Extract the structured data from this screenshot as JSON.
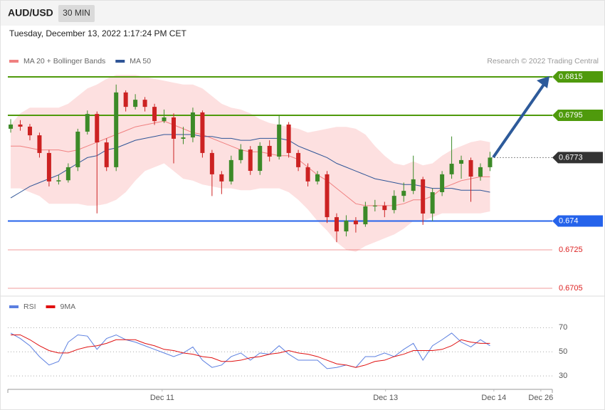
{
  "header": {
    "symbol": "AUD/USD",
    "timeframe": "30 MIN",
    "timestamp": "Tuesday, December 13, 2022 1:17:24 PM CET"
  },
  "chart_data": [
    {
      "type": "candlestick",
      "source": "Research © 2022 Trading Central",
      "xlim": [
        -0.3,
        56.5
      ],
      "ylim": [
        0.6701,
        0.682
      ],
      "up_color": "#3c8a28",
      "down_color": "#cc2222",
      "open": [
        0.6788,
        0.67902,
        0.67891,
        0.67846,
        0.67754,
        0.67606,
        0.67612,
        0.6768,
        0.67865,
        0.67957,
        0.67809,
        0.6768,
        0.68069,
        0.67994,
        0.68031,
        0.67994,
        0.6792,
        0.67939,
        0.67828,
        0.67835,
        0.67965,
        0.67754,
        0.67643,
        0.67606,
        0.67717,
        0.67772,
        0.67661,
        0.67791,
        0.67735,
        0.67902,
        0.67754,
        0.6768,
        0.67606,
        0.67643,
        0.6742,
        0.67346,
        0.67402,
        0.67383,
        0.67476,
        0.6748,
        0.67457,
        0.67531,
        0.67557,
        0.67617,
        0.67439,
        0.6755,
        0.67643,
        0.67698,
        0.67717,
        0.67631,
        0.6768
      ],
      "high": [
        0.6793,
        0.67925,
        0.67905,
        0.6786,
        0.6777,
        0.6764,
        0.677,
        0.6788,
        0.67975,
        0.6797,
        0.6783,
        0.6811,
        0.6808,
        0.6806,
        0.68045,
        0.6801,
        0.6798,
        0.6796,
        0.6789,
        0.6799,
        0.67975,
        0.6777,
        0.6766,
        0.6774,
        0.678,
        0.6779,
        0.6781,
        0.6782,
        0.6795,
        0.67915,
        0.6777,
        0.677,
        0.6766,
        0.6766,
        0.6744,
        0.6743,
        0.6742,
        0.675,
        0.6751,
        0.675,
        0.6756,
        0.676,
        0.6774,
        0.6763,
        0.6757,
        0.6766,
        0.6784,
        0.6774,
        0.6773,
        0.677,
        0.6776
      ],
      "low": [
        0.6786,
        0.6787,
        0.6782,
        0.6773,
        0.6758,
        0.6759,
        0.676,
        0.6766,
        0.6785,
        0.6744,
        0.6766,
        0.6766,
        0.6797,
        0.6798,
        0.6797,
        0.679,
        0.6791,
        0.677,
        0.678,
        0.6781,
        0.6773,
        0.6753,
        0.6754,
        0.6759,
        0.677,
        0.6764,
        0.6764,
        0.6771,
        0.6772,
        0.6773,
        0.6766,
        0.6758,
        0.6759,
        0.6739,
        0.6729,
        0.6732,
        0.6734,
        0.6737,
        0.6745,
        0.6742,
        0.6744,
        0.675,
        0.6754,
        0.6738,
        0.674,
        0.6753,
        0.6762,
        0.6762,
        0.675,
        0.6761,
        0.6766
      ],
      "close": [
        0.67902,
        0.67891,
        0.67846,
        0.67754,
        0.67606,
        0.67612,
        0.6768,
        0.67865,
        0.67957,
        0.67809,
        0.6768,
        0.68069,
        0.67994,
        0.68031,
        0.67994,
        0.6792,
        0.67939,
        0.67828,
        0.67835,
        0.67965,
        0.67754,
        0.67643,
        0.67606,
        0.67717,
        0.67772,
        0.67661,
        0.67791,
        0.67735,
        0.67902,
        0.67754,
        0.6768,
        0.67606,
        0.67643,
        0.6742,
        0.67346,
        0.67402,
        0.67383,
        0.67476,
        0.6748,
        0.67457,
        0.67531,
        0.67557,
        0.67617,
        0.67439,
        0.6755,
        0.67643,
        0.67698,
        0.67717,
        0.67631,
        0.6768,
        0.6773
      ],
      "series": [
        {
          "name": "MA 20 + Bollinger Bands",
          "color": "#f08080",
          "band_color": "#fde0e0",
          "values": [
            0.6779,
            0.6779,
            0.6778,
            0.6777,
            0.6777,
            0.6777,
            0.6776,
            0.6777,
            0.6779,
            0.6781,
            0.6783,
            0.6785,
            0.6787,
            0.6789,
            0.679,
            0.6791,
            0.6792,
            0.679,
            0.6788,
            0.6786,
            0.6785,
            0.6783,
            0.6781,
            0.6779,
            0.6777,
            0.6776,
            0.6776,
            0.6775,
            0.6774,
            0.6774,
            0.6772,
            0.6768,
            0.6764,
            0.6761,
            0.6757,
            0.6753,
            0.6749,
            0.6748,
            0.6748,
            0.6748,
            0.6748,
            0.6749,
            0.6751,
            0.6751,
            0.6753,
            0.6757,
            0.6759,
            0.6761,
            0.6762,
            0.6763,
            0.6763
          ],
          "upper": [
            0.679,
            0.6796,
            0.6799,
            0.6799,
            0.6799,
            0.6799,
            0.6801,
            0.6805,
            0.6809,
            0.6811,
            0.6814,
            0.6816,
            0.6816,
            0.6816,
            0.6815,
            0.6814,
            0.6813,
            0.6812,
            0.6811,
            0.6811,
            0.6809,
            0.6805,
            0.6801,
            0.6799,
            0.6798,
            0.6796,
            0.6793,
            0.6791,
            0.679,
            0.6789,
            0.6788,
            0.6786,
            0.6787,
            0.6788,
            0.6789,
            0.6789,
            0.6788,
            0.6785,
            0.6779,
            0.6774,
            0.677,
            0.6769,
            0.6771,
            0.6769,
            0.677,
            0.6774,
            0.6777,
            0.6779,
            0.6781,
            0.6782,
            0.6781
          ],
          "lower": [
            0.6757,
            0.6757,
            0.6755,
            0.6753,
            0.6749,
            0.6749,
            0.6749,
            0.6749,
            0.6748,
            0.6748,
            0.6749,
            0.6751,
            0.6755,
            0.6761,
            0.6766,
            0.6768,
            0.677,
            0.6766,
            0.6762,
            0.6761,
            0.6759,
            0.6758,
            0.6757,
            0.6757,
            0.6756,
            0.6756,
            0.6757,
            0.6757,
            0.6757,
            0.6755,
            0.6751,
            0.6746,
            0.674,
            0.6735,
            0.6729,
            0.6725,
            0.6724,
            0.6727,
            0.6729,
            0.6731,
            0.6733,
            0.6736,
            0.674,
            0.674,
            0.6742,
            0.6744,
            0.6744,
            0.6744,
            0.6744,
            0.6744,
            0.6745
          ]
        },
        {
          "name": "MA 50",
          "color": "#2f5597",
          "values": [
            0.6752,
            0.6755,
            0.6758,
            0.676,
            0.6762,
            0.6764,
            0.6767,
            0.677,
            0.6773,
            0.6774,
            0.6777,
            0.6778,
            0.678,
            0.6782,
            0.6783,
            0.6784,
            0.6785,
            0.6785,
            0.6785,
            0.6785,
            0.6784,
            0.6784,
            0.6783,
            0.6783,
            0.6782,
            0.6782,
            0.6783,
            0.6783,
            0.6783,
            0.6782,
            0.6779,
            0.6777,
            0.6775,
            0.6773,
            0.677,
            0.6768,
            0.6766,
            0.6764,
            0.6762,
            0.6761,
            0.676,
            0.6759,
            0.6759,
            0.6758,
            0.6757,
            0.6757,
            0.6757,
            0.6756,
            0.6756,
            0.6756,
            0.6755
          ]
        }
      ],
      "levels": [
        {
          "value": 0.6815,
          "color": "#4f9a0c",
          "style": "box"
        },
        {
          "value": 0.6795,
          "color": "#4f9a0c",
          "style": "box"
        },
        {
          "value": 0.6773,
          "color": "#333333",
          "style": "dotted-box"
        },
        {
          "value": 0.674,
          "color": "#2563eb",
          "style": "box"
        },
        {
          "value": 0.6725,
          "color": "#dd2222",
          "style": "text"
        },
        {
          "value": 0.6705,
          "color": "#dd2222",
          "style": "text"
        }
      ]
    },
    {
      "type": "line",
      "xlim": [
        -0.3,
        56.5
      ],
      "ylim": [
        20,
        82
      ],
      "yticks": [
        70,
        50,
        30
      ],
      "grid": true,
      "xticks": [
        {
          "value": 15.8,
          "label": "Dec 11"
        },
        {
          "value": 39.1,
          "label": "Dec 13"
        },
        {
          "value": 50.4,
          "label": "Dec 14"
        },
        {
          "value": 55.3,
          "label": "Dec 26"
        }
      ],
      "series": [
        {
          "name": "RSI",
          "color": "#5b7fe0",
          "values": [
            65.5,
            61,
            55,
            46,
            39,
            42,
            58,
            64,
            63,
            52,
            61,
            64,
            60,
            58,
            55,
            52,
            49,
            46,
            49,
            54,
            43,
            37,
            39,
            46,
            49,
            43,
            49,
            48,
            55,
            48,
            43,
            43,
            43,
            36,
            37,
            39,
            37,
            46,
            46,
            49,
            46,
            52,
            57,
            43,
            55,
            60,
            65.5,
            58,
            54,
            60,
            55
          ]
        },
        {
          "name": "9MA",
          "color": "#e01010",
          "values": [
            64,
            64,
            60,
            55,
            51,
            49,
            49,
            52,
            54,
            55,
            57,
            60,
            60,
            60,
            57,
            55,
            52,
            51,
            49,
            48,
            46,
            45,
            42,
            42,
            43,
            45,
            46,
            48,
            49,
            51,
            49,
            48,
            46,
            43,
            40,
            39,
            37,
            39,
            42,
            43,
            46,
            48,
            51,
            51,
            51,
            52,
            55,
            60,
            58,
            57,
            57
          ]
        }
      ]
    }
  ]
}
